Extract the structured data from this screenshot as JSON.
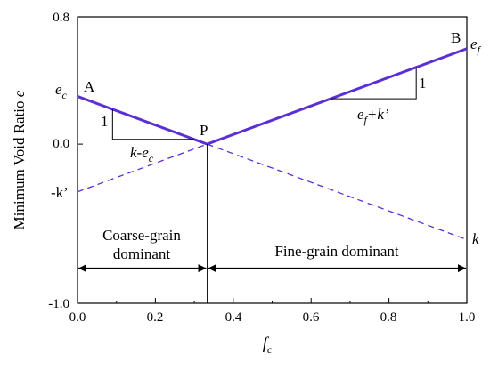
{
  "chart_data": {
    "type": "line",
    "xlabel_main": "f",
    "xlabel_sub": "c",
    "ylabel_prefix": "Minimum Void Ratio ",
    "ylabel_var": "e",
    "xlim": [
      0.0,
      1.0
    ],
    "ylim": [
      -1.0,
      0.8
    ],
    "x_ticks": [
      "0.0",
      "0.2",
      "0.4",
      "0.6",
      "0.8",
      "1.0"
    ],
    "y_ticks": [
      "-1.0",
      "0.0",
      "0.8"
    ],
    "grid": false,
    "series": [
      {
        "style": "solid",
        "color": "#5b2fd6",
        "x": [
          0.0,
          0.333
        ],
        "y": [
          0.3,
          0.0
        ]
      },
      {
        "style": "solid",
        "color": "#5b2fd6",
        "x": [
          0.333,
          1.0
        ],
        "y": [
          0.0,
          0.6
        ]
      },
      {
        "style": "dashed",
        "color": "#5b2fd6",
        "x": [
          0.0,
          0.333
        ],
        "y": [
          -0.3,
          0.0
        ]
      },
      {
        "style": "dashed",
        "color": "#5b2fd6",
        "x": [
          0.333,
          1.0
        ],
        "y": [
          0.0,
          -0.6
        ]
      }
    ],
    "points": [
      {
        "label": "A",
        "x": 0.0,
        "y": 0.3
      },
      {
        "label": "P",
        "x": 0.333,
        "y": 0.0
      },
      {
        "label": "B",
        "x": 1.0,
        "y": 0.6
      }
    ],
    "annotations": {
      "ec_main": "e",
      "ec_sub": "c",
      "ef_main": "e",
      "ef_sub": "f",
      "k_prime": "-k’",
      "k": "k",
      "slope_left_one": "1",
      "slope_left_main": "k-e",
      "slope_left_sub": "c",
      "slope_right_one": "1",
      "slope_right_pre": "e",
      "slope_right_sub": "f",
      "slope_right_post": "+k’",
      "zone_left_line1": "Coarse-grain",
      "zone_left_line2": "dominant",
      "zone_right": "Fine-grain dominant"
    }
  }
}
